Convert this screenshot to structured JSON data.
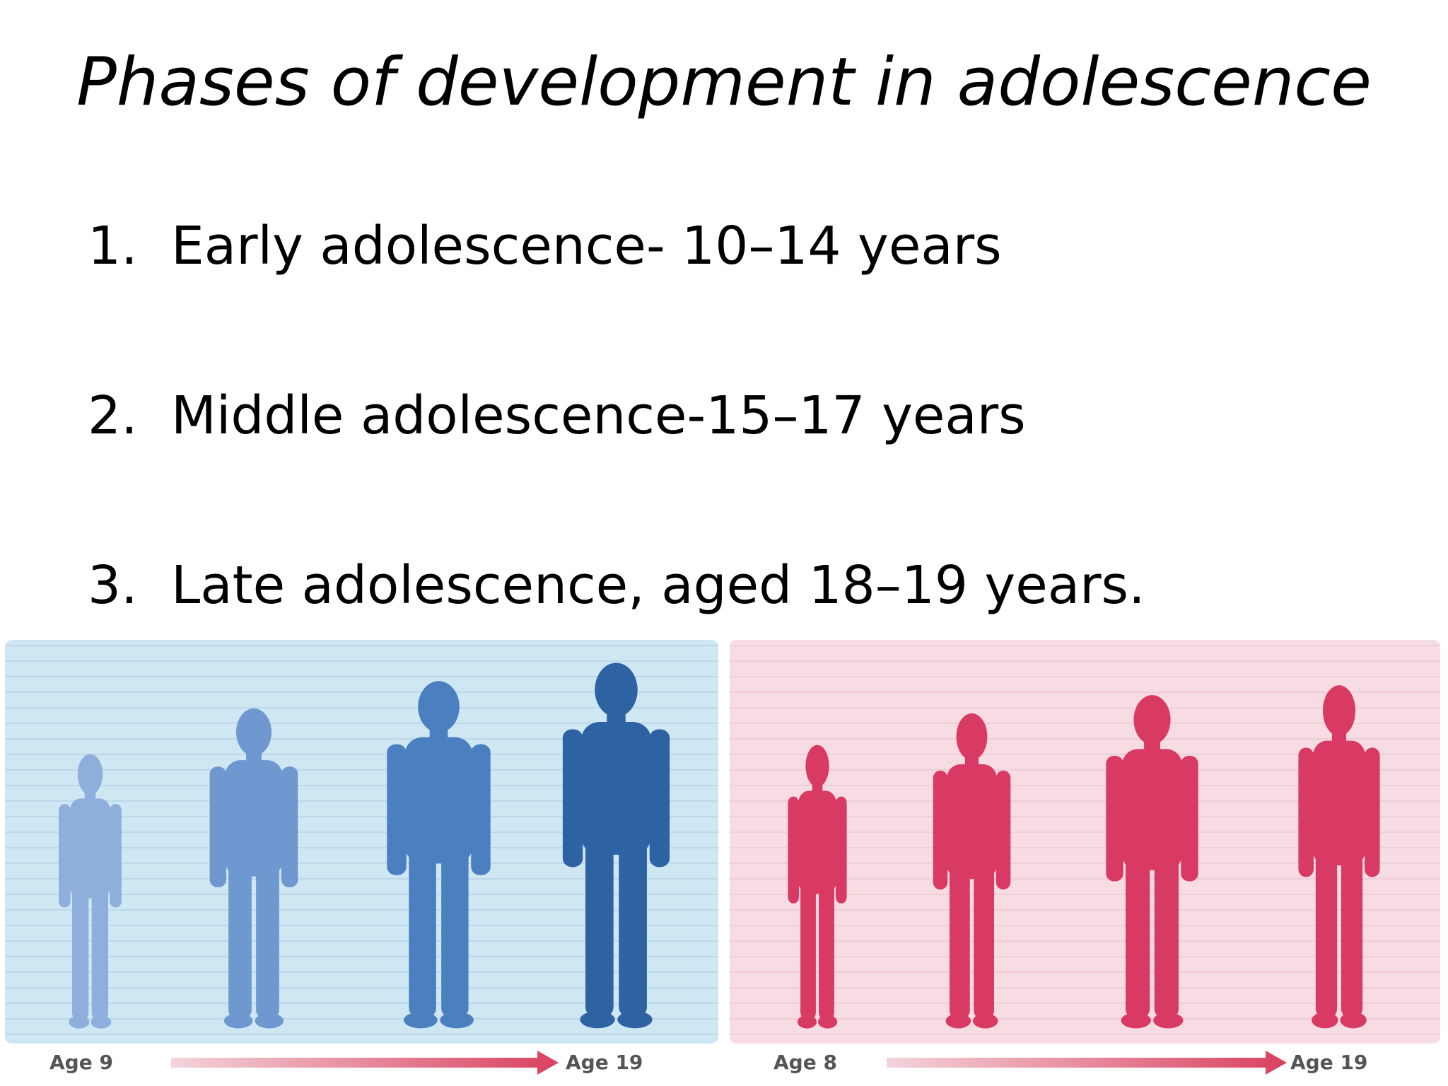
{
  "title": "Phases of development in adolescence",
  "items": [
    {
      "number": "1.",
      "text": "Early adolescence- 10–14 years"
    },
    {
      "number": "2.",
      "text": "Middle adolescence-15–17 years"
    },
    {
      "number": "3.",
      "text": "Late adolescence, aged 18–19 years."
    }
  ],
  "panels": [
    {
      "start_label": "Age 9",
      "end_label": "Age 19"
    },
    {
      "start_label": "Age 8",
      "end_label": "Age 19"
    }
  ]
}
